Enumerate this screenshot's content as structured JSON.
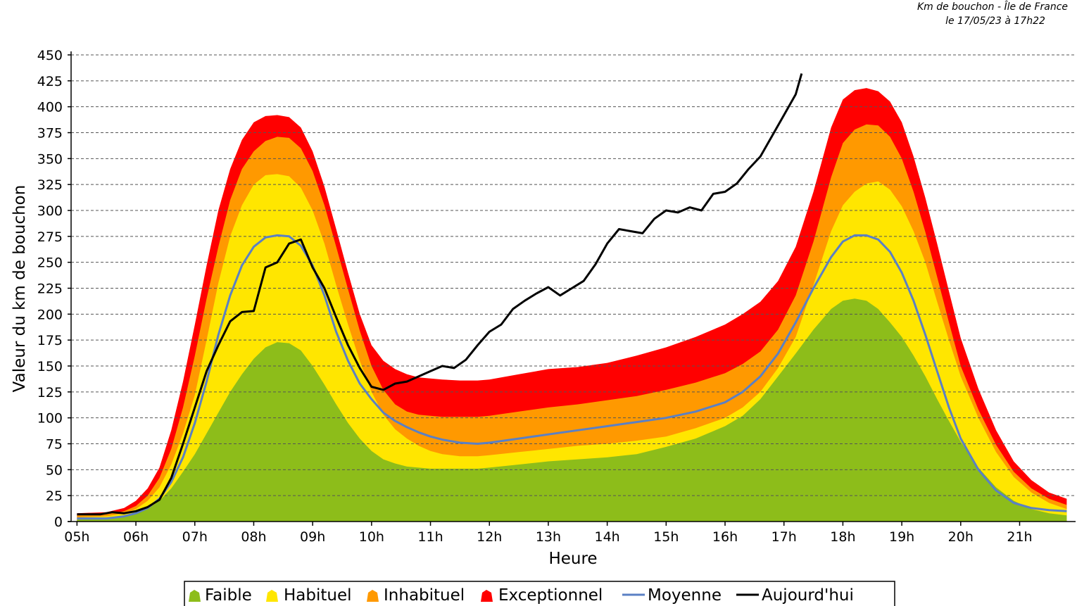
{
  "chart_data": {
    "type": "area",
    "caption_line1": "Km de bouchon - Île de France",
    "caption_line2": "le 17/05/23 à 17h22",
    "xlabel": "Heure",
    "ylabel": "Valeur du  km de bouchon",
    "xlim": [
      4.9,
      21.95
    ],
    "ylim": [
      0,
      450
    ],
    "y_ticks": [
      0,
      25,
      50,
      75,
      100,
      125,
      150,
      175,
      200,
      225,
      250,
      275,
      300,
      325,
      350,
      375,
      400,
      425,
      450
    ],
    "x_ticks": [
      {
        "value": 5,
        "label": "05h"
      },
      {
        "value": 6,
        "label": "06h"
      },
      {
        "value": 7,
        "label": "07h"
      },
      {
        "value": 8,
        "label": "08h"
      },
      {
        "value": 9,
        "label": "09h"
      },
      {
        "value": 10,
        "label": "10h"
      },
      {
        "value": 11,
        "label": "11h"
      },
      {
        "value": 12,
        "label": "12h"
      },
      {
        "value": 13,
        "label": "13h"
      },
      {
        "value": 14,
        "label": "14h"
      },
      {
        "value": 15,
        "label": "15h"
      },
      {
        "value": 16,
        "label": "16h"
      },
      {
        "value": 17,
        "label": "17h"
      },
      {
        "value": 18,
        "label": "18h"
      },
      {
        "value": 19,
        "label": "19h"
      },
      {
        "value": 20,
        "label": "20h"
      },
      {
        "value": 21,
        "label": "21h"
      }
    ],
    "grid": true,
    "legend_position": "bottom",
    "x": [
      5.0,
      5.5,
      5.8,
      6.0,
      6.2,
      6.4,
      6.6,
      6.8,
      7.0,
      7.2,
      7.4,
      7.6,
      7.8,
      8.0,
      8.2,
      8.4,
      8.6,
      8.8,
      9.0,
      9.2,
      9.4,
      9.6,
      9.8,
      10.0,
      10.2,
      10.4,
      10.6,
      10.8,
      11.0,
      11.2,
      11.5,
      11.8,
      12.0,
      12.5,
      13.0,
      13.5,
      14.0,
      14.5,
      15.0,
      15.5,
      16.0,
      16.3,
      16.6,
      16.9,
      17.2,
      17.5,
      17.8,
      18.0,
      18.2,
      18.4,
      18.6,
      18.8,
      19.0,
      19.2,
      19.4,
      19.6,
      19.8,
      20.0,
      20.3,
      20.6,
      20.9,
      21.2,
      21.5,
      21.8
    ],
    "series": [
      {
        "name": "Faible",
        "color": "#8dbd1a",
        "values": [
          2,
          3,
          5,
          8,
          12,
          20,
          32,
          48,
          65,
          85,
          105,
          125,
          142,
          157,
          168,
          173,
          172,
          165,
          150,
          132,
          113,
          95,
          80,
          68,
          60,
          56,
          53,
          52,
          51,
          51,
          51,
          51,
          52,
          55,
          58,
          60,
          62,
          65,
          72,
          80,
          92,
          102,
          118,
          140,
          162,
          185,
          205,
          213,
          215,
          213,
          205,
          192,
          178,
          160,
          140,
          118,
          97,
          77,
          52,
          33,
          20,
          12,
          8,
          6
        ]
      },
      {
        "name": "Habituel",
        "color": "#ffe600",
        "values": [
          4,
          5,
          8,
          12,
          20,
          33,
          55,
          85,
          122,
          175,
          230,
          275,
          305,
          325,
          334,
          335,
          333,
          322,
          300,
          268,
          228,
          190,
          155,
          125,
          103,
          89,
          80,
          73,
          68,
          65,
          63,
          63,
          64,
          67,
          70,
          73,
          75,
          78,
          82,
          90,
          100,
          110,
          125,
          148,
          178,
          228,
          280,
          305,
          318,
          326,
          328,
          320,
          304,
          280,
          250,
          212,
          175,
          140,
          100,
          67,
          43,
          28,
          18,
          12
        ]
      },
      {
        "name": "Inhabituel",
        "color": "#ff9900",
        "values": [
          6,
          7,
          10,
          15,
          25,
          42,
          70,
          110,
          160,
          215,
          265,
          310,
          340,
          357,
          367,
          371,
          370,
          360,
          338,
          305,
          265,
          224,
          184,
          150,
          127,
          113,
          106,
          103,
          102,
          101,
          101,
          101,
          102,
          106,
          110,
          113,
          117,
          121,
          127,
          134,
          143,
          152,
          164,
          185,
          218,
          270,
          332,
          365,
          378,
          383,
          382,
          371,
          350,
          318,
          279,
          236,
          192,
          150,
          108,
          74,
          48,
          32,
          22,
          16
        ]
      },
      {
        "name": "Exceptionnel",
        "color": "#ff0000",
        "values": [
          8,
          9,
          13,
          20,
          32,
          52,
          88,
          135,
          190,
          247,
          300,
          340,
          368,
          385,
          391,
          392,
          390,
          380,
          357,
          323,
          282,
          240,
          200,
          170,
          155,
          147,
          142,
          139,
          138,
          137,
          136,
          136,
          137,
          142,
          147,
          149,
          153,
          160,
          168,
          178,
          190,
          200,
          212,
          232,
          265,
          318,
          380,
          407,
          416,
          418,
          415,
          405,
          385,
          352,
          312,
          268,
          222,
          177,
          128,
          88,
          58,
          40,
          28,
          22
        ]
      },
      {
        "name": "Moyenne",
        "color": "#5b80c4",
        "values": [
          3,
          3,
          5,
          8,
          13,
          22,
          38,
          62,
          95,
          135,
          180,
          218,
          247,
          265,
          274,
          276,
          275,
          266,
          247,
          218,
          183,
          155,
          133,
          118,
          105,
          97,
          91,
          86,
          82,
          79,
          76,
          75,
          76,
          80,
          84,
          88,
          92,
          96,
          100,
          106,
          115,
          125,
          140,
          162,
          192,
          225,
          255,
          270,
          276,
          276,
          272,
          260,
          240,
          213,
          180,
          145,
          110,
          80,
          50,
          30,
          18,
          13,
          11,
          10
        ]
      },
      {
        "name": "Aujourd'hui",
        "color": "#000000",
        "x": [
          5.0,
          5.4,
          5.6,
          5.8,
          6.0,
          6.2,
          6.4,
          6.6,
          6.8,
          7.0,
          7.2,
          7.4,
          7.6,
          7.8,
          8.0,
          8.2,
          8.4,
          8.6,
          8.8,
          9.0,
          9.2,
          9.4,
          9.6,
          9.8,
          10.0,
          10.2,
          10.4,
          10.6,
          10.8,
          11.0,
          11.2,
          11.4,
          11.6,
          11.8,
          12.0,
          12.2,
          12.4,
          12.6,
          12.8,
          13.0,
          13.2,
          13.4,
          13.6,
          13.8,
          14.0,
          14.2,
          14.4,
          14.6,
          14.8,
          15.0,
          15.2,
          15.4,
          15.6,
          15.8,
          16.0,
          16.2,
          16.4,
          16.6,
          16.8,
          17.0,
          17.2,
          17.3
        ],
        "values": [
          7,
          7,
          9,
          8,
          10,
          14,
          21,
          42,
          75,
          110,
          145,
          170,
          193,
          202,
          203,
          245,
          250,
          268,
          272,
          245,
          225,
          197,
          170,
          148,
          130,
          127,
          133,
          135,
          140,
          145,
          150,
          148,
          156,
          170,
          183,
          190,
          205,
          213,
          220,
          226,
          218,
          225,
          232,
          248,
          268,
          282,
          280,
          278,
          292,
          300,
          298,
          303,
          300,
          316,
          318,
          326,
          340,
          352,
          372,
          392,
          412,
          432
        ]
      }
    ]
  }
}
